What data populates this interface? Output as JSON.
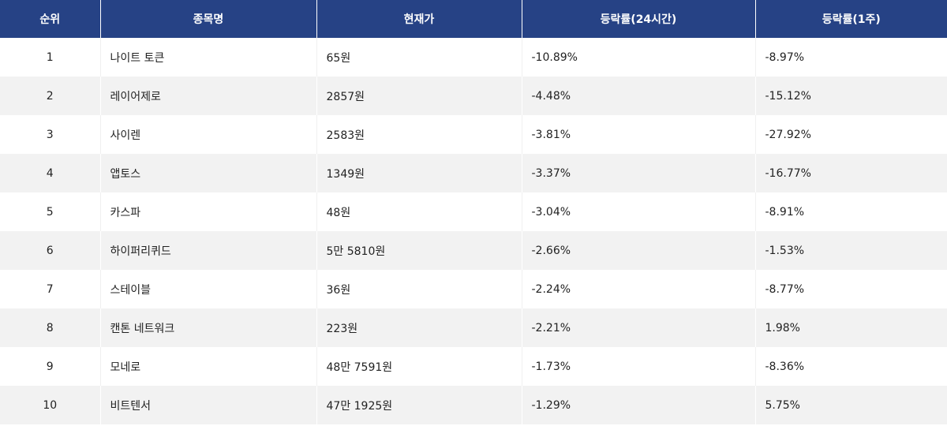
{
  "table": {
    "headers": [
      "순위",
      "종목명",
      "현재가",
      "등락률(24시간)",
      "등락률(1주)"
    ],
    "rows": [
      {
        "rank": "1",
        "name": "나이트 토큰",
        "price": "65원",
        "change_24h": "-10.89%",
        "change_1w": "-8.97%"
      },
      {
        "rank": "2",
        "name": "레이어제로",
        "price": "2857원",
        "change_24h": "-4.48%",
        "change_1w": "-15.12%"
      },
      {
        "rank": "3",
        "name": "사이렌",
        "price": "2583원",
        "change_24h": "-3.81%",
        "change_1w": "-27.92%"
      },
      {
        "rank": "4",
        "name": "앱토스",
        "price": "1349원",
        "change_24h": "-3.37%",
        "change_1w": "-16.77%"
      },
      {
        "rank": "5",
        "name": "카스파",
        "price": "48원",
        "change_24h": "-3.04%",
        "change_1w": "-8.91%"
      },
      {
        "rank": "6",
        "name": "하이퍼리퀴드",
        "price": "5만 5810원",
        "change_24h": "-2.66%",
        "change_1w": "-1.53%"
      },
      {
        "rank": "7",
        "name": "스테이블",
        "price": "36원",
        "change_24h": "-2.24%",
        "change_1w": "-8.77%"
      },
      {
        "rank": "8",
        "name": "캔톤 네트워크",
        "price": "223원",
        "change_24h": "-2.21%",
        "change_1w": "1.98%"
      },
      {
        "rank": "9",
        "name": "모네로",
        "price": "48만 7591원",
        "change_24h": "-1.73%",
        "change_1w": "-8.36%"
      },
      {
        "rank": "10",
        "name": "비트텐서",
        "price": "47만 1925원",
        "change_24h": "-1.29%",
        "change_1w": "5.75%"
      }
    ]
  },
  "colors": {
    "header_bg": "#264285",
    "header_text": "#ffffff",
    "row_alt_bg": "#f2f2f2",
    "text": "#222222"
  }
}
